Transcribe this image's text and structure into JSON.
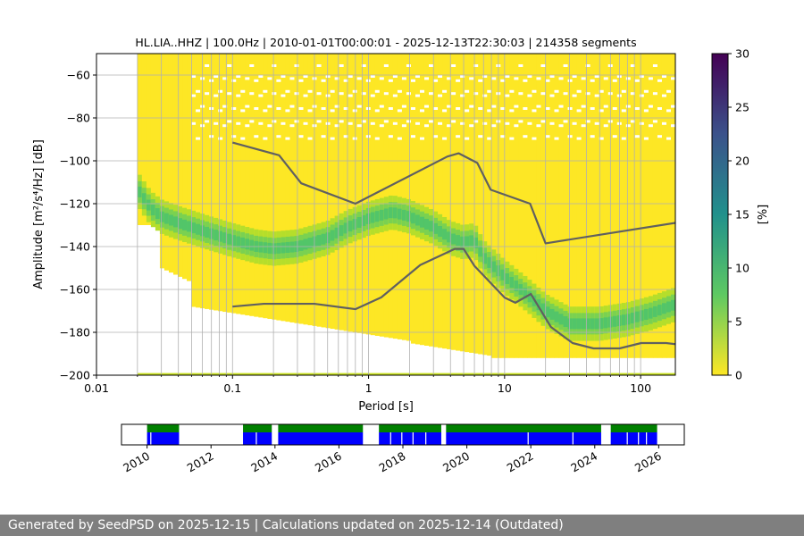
{
  "chart_data": [
    {
      "type": "heatmap",
      "title": "HL.LIA..HHZ | 100.0Hz | 2010-01-01T00:00:01 - 2025-12-13T22:30:03 | 214358 segments",
      "xlabel": "Period [s]",
      "ylabel": "Amplitude [m²/s⁴/Hz] [dB]",
      "x_scale": "log",
      "xlim": [
        0.01,
        180
      ],
      "ylim": [
        -200,
        -50
      ],
      "x_ticks": [
        0.01,
        0.1,
        1,
        10,
        100
      ],
      "x_tick_labels": [
        "0.01",
        "0.1",
        "1",
        "10",
        "100"
      ],
      "y_ticks": [
        -200,
        -180,
        -160,
        -140,
        -120,
        -100,
        -80,
        -60
      ],
      "y_tick_labels": [
        "−200",
        "−180",
        "−160",
        "−140",
        "−120",
        "−100",
        "−80",
        "−60"
      ],
      "grid": true,
      "colorbar": {
        "label": "[%]",
        "range": [
          0,
          30
        ],
        "ticks": [
          0,
          5,
          10,
          15,
          20,
          25,
          30
        ],
        "tick_labels": [
          "0",
          "5",
          "10",
          "15",
          "20",
          "25",
          "30"
        ],
        "colormap": "viridis"
      },
      "mode_curve": {
        "period": [
          0.02,
          0.025,
          0.03,
          0.04,
          0.05,
          0.07,
          0.1,
          0.15,
          0.2,
          0.3,
          0.5,
          0.7,
          1.0,
          1.5,
          2,
          3,
          4,
          5,
          6,
          7,
          10,
          15,
          20,
          30,
          50,
          80,
          120,
          180
        ],
        "db": [
          -113,
          -122,
          -126,
          -129,
          -131,
          -134,
          -137,
          -140,
          -141,
          -140,
          -136,
          -131,
          -127,
          -124,
          -126,
          -131,
          -136,
          -138,
          -137,
          -145,
          -154,
          -163,
          -170,
          -176,
          -176,
          -174,
          -171,
          -167
        ]
      },
      "noise_models": [
        {
          "period": [
            0.1,
            0.22,
            0.32,
            0.8,
            3.8,
            4.6,
            6.3,
            7.9,
            15.4,
            20,
            354.8
          ],
          "db": [
            -91.5,
            -97.4,
            -110.5,
            -120.0,
            -98.0,
            -96.5,
            -101.0,
            -113.5,
            -120.0,
            -138.5,
            -126.0
          ]
        },
        {
          "period": [
            0.1,
            0.17,
            0.4,
            0.8,
            1.24,
            2.4,
            4.3,
            5.0,
            6.0,
            10.0,
            12.0,
            15.6,
            21.9,
            31.6,
            45.0,
            70.0,
            101.0,
            154.0,
            328.0
          ],
          "db": [
            -168.0,
            -166.7,
            -166.7,
            -169.2,
            -163.7,
            -148.6,
            -141.1,
            -141.1,
            -149.0,
            -163.8,
            -166.2,
            -162.1,
            -177.5,
            -185.0,
            -187.5,
            -187.5,
            -185.0,
            -185.0,
            -187.5
          ]
        }
      ]
    },
    {
      "type": "timeline",
      "x_ticks": [
        2010,
        2012,
        2014,
        2016,
        2018,
        2020,
        2022,
        2024,
        2026
      ],
      "x_tick_labels": [
        "2010",
        "2012",
        "2014",
        "2016",
        "2018",
        "2020",
        "2022",
        "2024",
        "2026"
      ],
      "xlim": [
        2009.2,
        2026.8
      ],
      "colors": {
        "top": "#008000",
        "bottom": "#0000ff"
      },
      "segments": [
        [
          2010.0,
          2011.0
        ],
        [
          2013.0,
          2013.9
        ],
        [
          2014.1,
          2016.75
        ],
        [
          2017.25,
          2019.2
        ],
        [
          2019.35,
          2024.2
        ],
        [
          2024.5,
          2025.95
        ]
      ],
      "gaps": [
        2010.1,
        2013.4,
        2017.6,
        2017.95,
        2018.3,
        2018.7,
        2021.9,
        2023.3,
        2025.0,
        2025.35,
        2025.6
      ]
    }
  ],
  "footer": {
    "text": "Generated by SeedPSD on 2025-12-15 | Calculations updated on 2025-12-14 (Outdated)"
  },
  "colors": {
    "background": "#ffffff",
    "footer_bg": "#7f7f7f",
    "model_line": "#606060",
    "grid": "#b0b0b0"
  }
}
